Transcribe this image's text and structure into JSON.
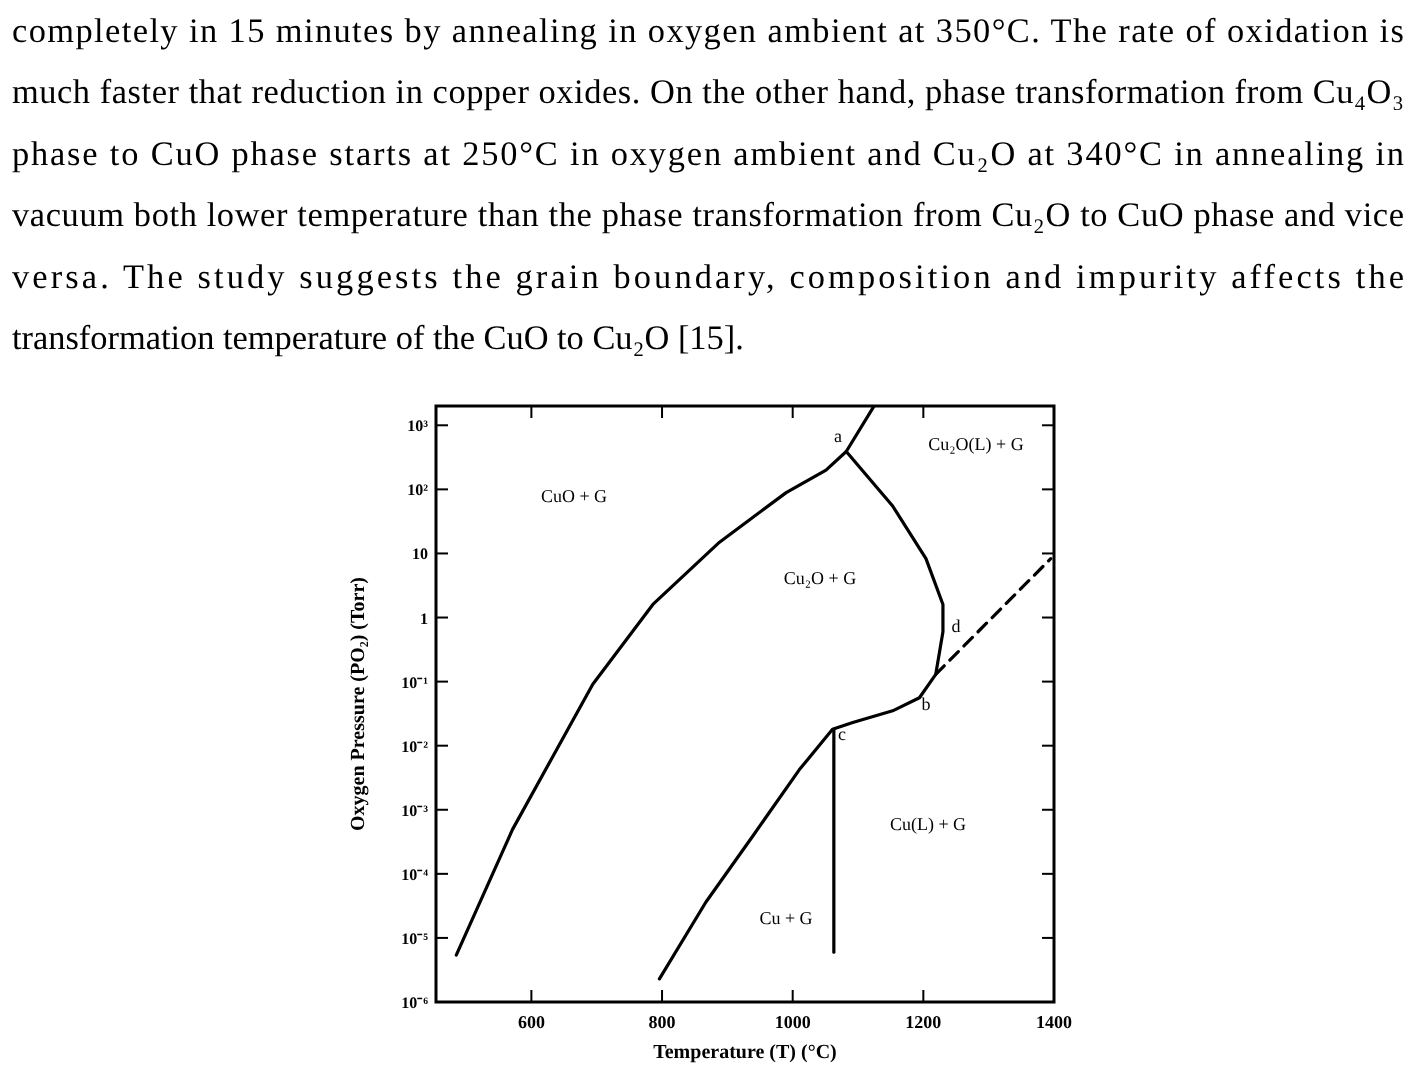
{
  "chart_data": {
    "type": "line",
    "xlabel": "Temperature (T)  (°C)",
    "ylabel": "Oxygen Pressure (PO₂) (Torr)",
    "log": "y",
    "xlim": [
      454,
      1400
    ],
    "xticks": [
      600,
      800,
      1000,
      1200,
      1400
    ],
    "ylim": [
      1e-06,
      2000
    ],
    "yticks": [
      {
        "value": 1000,
        "label": "10³"
      },
      {
        "value": 100,
        "label": "10²"
      },
      {
        "value": 10,
        "label": "10"
      },
      {
        "value": 1,
        "label": "1"
      },
      {
        "value": 0.1,
        "label": "10⁻¹"
      },
      {
        "value": 0.01,
        "label": "10⁻²"
      },
      {
        "value": 0.001,
        "label": "10⁻³"
      },
      {
        "value": 0.0001,
        "label": "10⁻⁴"
      },
      {
        "value": 1e-05,
        "label": "10⁻⁵"
      },
      {
        "value": 1e-06,
        "label": "10⁻⁶"
      }
    ],
    "grid": false,
    "marker": "none",
    "series": [
      {
        "color": "#000000",
        "line_style": "solid",
        "x": [
          485,
          571,
          694,
          786,
          888,
          990,
          1051,
          1082,
          1124
        ],
        "values": [
          5.4e-06,
          0.00049,
          0.091,
          1.6,
          15,
          89,
          200,
          390,
          1950
        ]
      },
      {
        "color": "#000000",
        "line_style": "solid",
        "x": [
          796,
          867,
          939,
          1010,
          1061,
          1092,
          1153,
          1194,
          1219,
          1230,
          1230,
          1204,
          1153,
          1082
        ],
        "values": [
          2.3e-06,
          3.6e-05,
          0.00039,
          0.0042,
          0.018,
          0.023,
          0.035,
          0.056,
          0.13,
          0.6,
          1.6,
          8.3,
          55,
          390
        ]
      },
      {
        "color": "#000000",
        "line_style": "dashed",
        "x": [
          1219,
          1395
        ],
        "values": [
          0.13,
          8.3
        ]
      },
      {
        "color": "#000000",
        "line_style": "solid",
        "x": [
          1063,
          1063
        ],
        "values": [
          0.018,
          6e-06
        ]
      }
    ],
    "annotations": [
      "CuO + G",
      "Cu₂O + G",
      "Cu₂O(L) + G",
      "Cu(L) + G",
      "Cu + G",
      "a",
      "d",
      "b",
      "c",
      "completely in 15 minutes by annealing in oxygen ambient at 350°C. The rate of oxidation is",
      "much faster that reduction in copper oxides. On the other hand, phase transformation from Cu₄O₃",
      "phase to CuO phase starts at 250°C in oxygen ambient and Cu₂O at 340°C in annealing in",
      "vacuum both lower temperature than the phase transformation from Cu₂O to CuO phase and vice",
      "versa. The study suggests the grain boundary, composition and impurity affects the",
      "transformation temperature of the CuO to Cu₂O [15]."
    ]
  }
}
